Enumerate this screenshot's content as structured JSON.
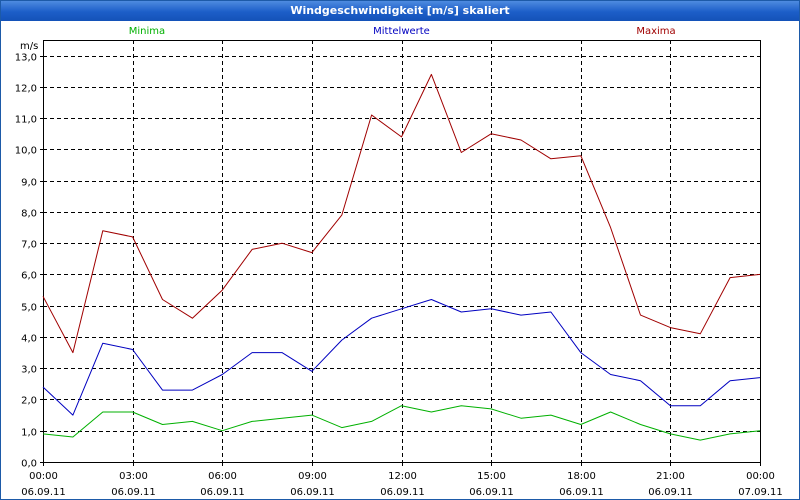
{
  "window": {
    "title": "Windgeschwindigkeit [m/s] skaliert"
  },
  "chart_data": {
    "type": "line",
    "title": "Windgeschwindigkeit [m/s] skaliert",
    "ylabel": "m/s",
    "xlabel": "",
    "ylim": [
      0,
      13.5
    ],
    "xlim_hours": [
      0,
      24
    ],
    "yticks": [
      "0,0",
      "1,0",
      "2,0",
      "3,0",
      "4,0",
      "5,0",
      "6,0",
      "7,0",
      "8,0",
      "9,0",
      "10,0",
      "11,0",
      "12,0",
      "13,0"
    ],
    "xticks": [
      {
        "time": "00:00",
        "date": "06.09.11"
      },
      {
        "time": "03:00",
        "date": "06.09.11"
      },
      {
        "time": "06:00",
        "date": "06.09.11"
      },
      {
        "time": "09:00",
        "date": "06.09.11"
      },
      {
        "time": "12:00",
        "date": "06.09.11"
      },
      {
        "time": "15:00",
        "date": "06.09.11"
      },
      {
        "time": "18:00",
        "date": "06.09.11"
      },
      {
        "time": "21:00",
        "date": "06.09.11"
      },
      {
        "time": "00:00",
        "date": "07.09.11"
      }
    ],
    "grid": true,
    "series": [
      {
        "name": "Minima",
        "color": "#00b000",
        "x_hours": [
          0,
          1,
          2,
          3,
          4,
          5,
          6,
          7,
          8,
          9,
          10,
          11,
          12,
          13,
          14,
          15,
          16,
          17,
          18,
          19,
          20,
          21,
          22,
          23,
          24
        ],
        "values": [
          0.9,
          0.8,
          1.6,
          1.6,
          1.2,
          1.3,
          1.0,
          1.3,
          1.4,
          1.5,
          1.1,
          1.3,
          1.8,
          1.6,
          1.8,
          1.7,
          1.4,
          1.5,
          1.2,
          1.6,
          1.2,
          0.9,
          0.7,
          0.9,
          1.0
        ]
      },
      {
        "name": "Mittelwerte",
        "color": "#0000c0",
        "x_hours": [
          0,
          1,
          2,
          3,
          4,
          5,
          6,
          7,
          8,
          9,
          10,
          11,
          12,
          13,
          14,
          15,
          16,
          17,
          18,
          19,
          20,
          21,
          22,
          23,
          24
        ],
        "values": [
          2.4,
          1.5,
          3.8,
          3.6,
          2.3,
          2.3,
          2.8,
          3.5,
          3.5,
          2.9,
          3.9,
          4.6,
          4.9,
          5.2,
          4.8,
          4.9,
          4.7,
          4.8,
          3.5,
          2.8,
          2.6,
          1.8,
          1.8,
          2.6,
          2.7
        ]
      },
      {
        "name": "Maxima",
        "color": "#a00000",
        "x_hours": [
          0,
          1,
          2,
          3,
          4,
          5,
          6,
          7,
          8,
          9,
          10,
          11,
          12,
          13,
          14,
          15,
          16,
          17,
          18,
          19,
          20,
          21,
          22,
          23,
          24
        ],
        "values": [
          5.3,
          3.5,
          7.4,
          7.2,
          5.2,
          4.6,
          5.5,
          6.8,
          7.0,
          6.7,
          7.9,
          11.1,
          10.4,
          12.4,
          9.9,
          10.5,
          10.3,
          9.7,
          9.8,
          7.5,
          4.7,
          4.3,
          4.1,
          5.9,
          6.0
        ]
      }
    ]
  }
}
